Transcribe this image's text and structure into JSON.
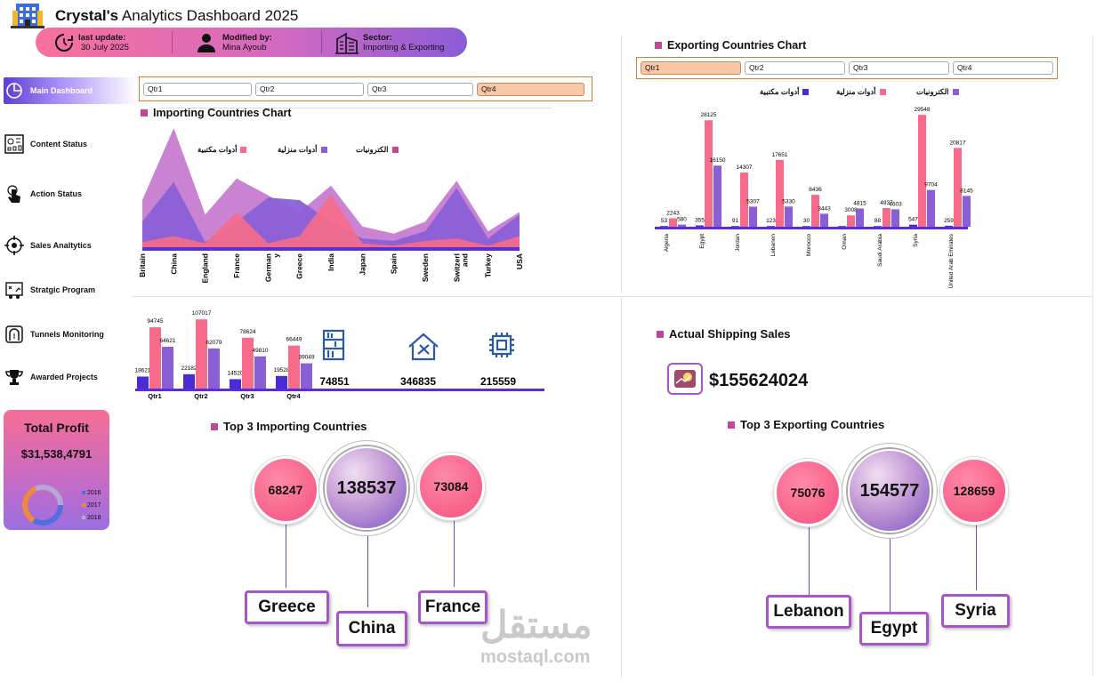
{
  "header": {
    "title_bold": "Crystal's",
    "title_rest": " Analytics Dashboard 2025",
    "last_update_label": "last update:",
    "last_update_value": "30 July 2025",
    "modified_label": "Modified by:",
    "modified_value": "Mina Ayoub",
    "sector_label": "Sector:",
    "sector_value": "Importing & Exporting"
  },
  "sidebar": {
    "items": [
      {
        "label": "Main Dashboard",
        "icon": "pie-chart-icon"
      },
      {
        "label": "Content Status",
        "icon": "dashboard-icon"
      },
      {
        "label": "Action Status",
        "icon": "touch-hand-icon"
      },
      {
        "label": "Sales Analtytics",
        "icon": "target-icon"
      },
      {
        "label": "Stratgic Program",
        "icon": "strategy-icon"
      },
      {
        "label": "Tunnels Monitoring",
        "icon": "tunnel-icon"
      },
      {
        "label": "Awarded Projects",
        "icon": "trophy-icon"
      }
    ]
  },
  "profit": {
    "title": "Total Profit",
    "value": "$31,538,4791",
    "legend": [
      "2016",
      "2017",
      "2018"
    ],
    "colors": [
      "#4f6fe0",
      "#f08a3a",
      "#b9a6d9"
    ]
  },
  "import_slicer": {
    "buttons": [
      "Qtr1",
      "Qtr2",
      "Qtr3",
      "Qtr4"
    ],
    "selected": 3
  },
  "export_slicer": {
    "buttons": [
      "Qtr1",
      "Qtr2",
      "Qtr3",
      "Qtr4"
    ],
    "selected": 0
  },
  "colors": {
    "office": "#f76b8a",
    "home": "#8a5fd6",
    "electronics": "#c77bd0",
    "dark": "#4b2bd6"
  },
  "importing_chart": {
    "title": "Importing Countries Chart",
    "legend": [
      "أدوات مكتبية",
      "أدوات منزلية",
      "الكترونيات"
    ],
    "chart_data": {
      "type": "area",
      "categories": [
        "Britain",
        "China",
        "England",
        "France",
        "Germany",
        "Greece",
        "India",
        "Japan",
        "Spain",
        "Sweden",
        "Switzerland",
        "Turkey",
        "USA"
      ],
      "category_labels": [
        "Britain",
        "China",
        "England",
        "France",
        "German y",
        "Greece",
        "India",
        "Japan",
        "Spain",
        "Sweden",
        "Switzerl and",
        "Turkey",
        "USA"
      ],
      "series": [
        {
          "name": "الكترونيات",
          "values": [
            40,
            100,
            28,
            58,
            44,
            30,
            52,
            18,
            12,
            22,
            56,
            14,
            30
          ]
        },
        {
          "name": "أدوات منزلية",
          "values": [
            22,
            55,
            5,
            22,
            42,
            40,
            22,
            8,
            6,
            14,
            50,
            8,
            28
          ]
        },
        {
          "name": "أدوات مكتبية",
          "values": [
            5,
            10,
            4,
            30,
            4,
            10,
            45,
            4,
            2,
            6,
            8,
            2,
            10
          ]
        }
      ]
    }
  },
  "quarter_chart": {
    "chart_data": {
      "type": "bar",
      "categories": [
        "Qtr1",
        "Qtr2",
        "Qtr3",
        "Qtr4"
      ],
      "series": [
        {
          "name": "dark",
          "values": [
            18621,
            22182,
            14520,
            19528
          ]
        },
        {
          "name": "office",
          "values": [
            94745,
            107017,
            78624,
            66449
          ]
        },
        {
          "name": "home",
          "values": [
            64621,
            62079,
            49810,
            39049
          ]
        }
      ],
      "ylim": [
        0,
        110000
      ]
    },
    "totals": [
      {
        "icon": "shelf-icon",
        "value": "74851"
      },
      {
        "icon": "house-tools-icon",
        "value": "346835"
      },
      {
        "icon": "chip-icon",
        "value": "215559"
      }
    ]
  },
  "exporting_chart": {
    "title": "Exporting Countries Chart",
    "legend": [
      "أدوات مكتبية",
      "أدوات منزلية",
      "الكترونيات"
    ],
    "chart_data": {
      "type": "bar",
      "categories": [
        "Algeria",
        "Egypt",
        "Jordan",
        "Lebanon",
        "Morocco",
        "Oman",
        "Saudi Arabia",
        "Syria",
        "United Arab Emirates"
      ],
      "series": [
        {
          "name": "office",
          "values": [
            2243,
            28125,
            14307,
            17651,
            8436,
            3008,
            4937,
            29548,
            20817
          ]
        },
        {
          "name": "home",
          "values": [
            580,
            16150,
            5307,
            5330,
            3443,
            4815,
            4603,
            9704,
            8145
          ]
        },
        {
          "name": "dark",
          "values": [
            53,
            355,
            91,
            123,
            30,
            0,
            88,
            547,
            259
          ]
        }
      ],
      "data_labels": [
        [
          "2243",
          "28125",
          "14307",
          "17651",
          "8436",
          "3008",
          "4937",
          "29548",
          "20817"
        ],
        [
          "580",
          "16150",
          "5307",
          "5330",
          "3443",
          "4815",
          "4603",
          "9704",
          "8145"
        ],
        [
          "53",
          "355",
          "91",
          "123",
          "30",
          "",
          "88",
          "547",
          "259"
        ]
      ],
      "ylim": [
        0,
        31000
      ]
    }
  },
  "shipping": {
    "title": "Actual Shipping Sales",
    "value": "$155624024"
  },
  "top_import": {
    "title": "Top 3 Importing Countries",
    "left": {
      "value": "68247",
      "country": "Greece"
    },
    "center": {
      "value": "138537",
      "country": "China"
    },
    "right": {
      "value": "73084",
      "country": "France"
    }
  },
  "top_export": {
    "title": "Top 3 Exporting Countries",
    "left": {
      "value": "75076",
      "country": "Lebanon"
    },
    "center": {
      "value": "154577",
      "country": "Egypt"
    },
    "right": {
      "value": "128659",
      "country": "Syria"
    }
  },
  "watermark": {
    "arabic": "مستقل",
    "latin": "mostaql.com"
  }
}
